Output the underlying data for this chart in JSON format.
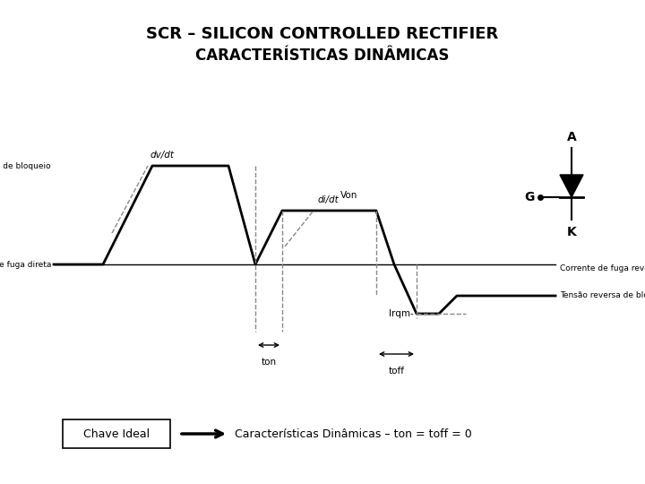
{
  "title_line1": "SCR – SILICON CONTROLLED RECTIFIER",
  "title_line2": "CARACTERÍSTICAS DINÂMICAS",
  "background_color": "#ffffff",
  "waveform_color": "#000000",
  "dashed_color": "#888888",
  "label_tensao_direta": "Tensão direta de bloqueio",
  "label_corrente_fuga": "Corrente de fuga direta",
  "label_dvdt": "dv/dt",
  "label_didt": "di/dt",
  "label_von": "Von",
  "label_irqm": "Irqm-",
  "label_ton": "ton",
  "label_toff": "toff",
  "label_corrente_reversa": "Corrente de fuga reversa",
  "label_tensao_reversa": "Tensão reversa de bloqueio",
  "label_A": "A",
  "label_G": "G",
  "label_K": "K",
  "box_label": "Chave Ideal",
  "arrow_label": "Características Dinâmicas – ton = toff = 0"
}
